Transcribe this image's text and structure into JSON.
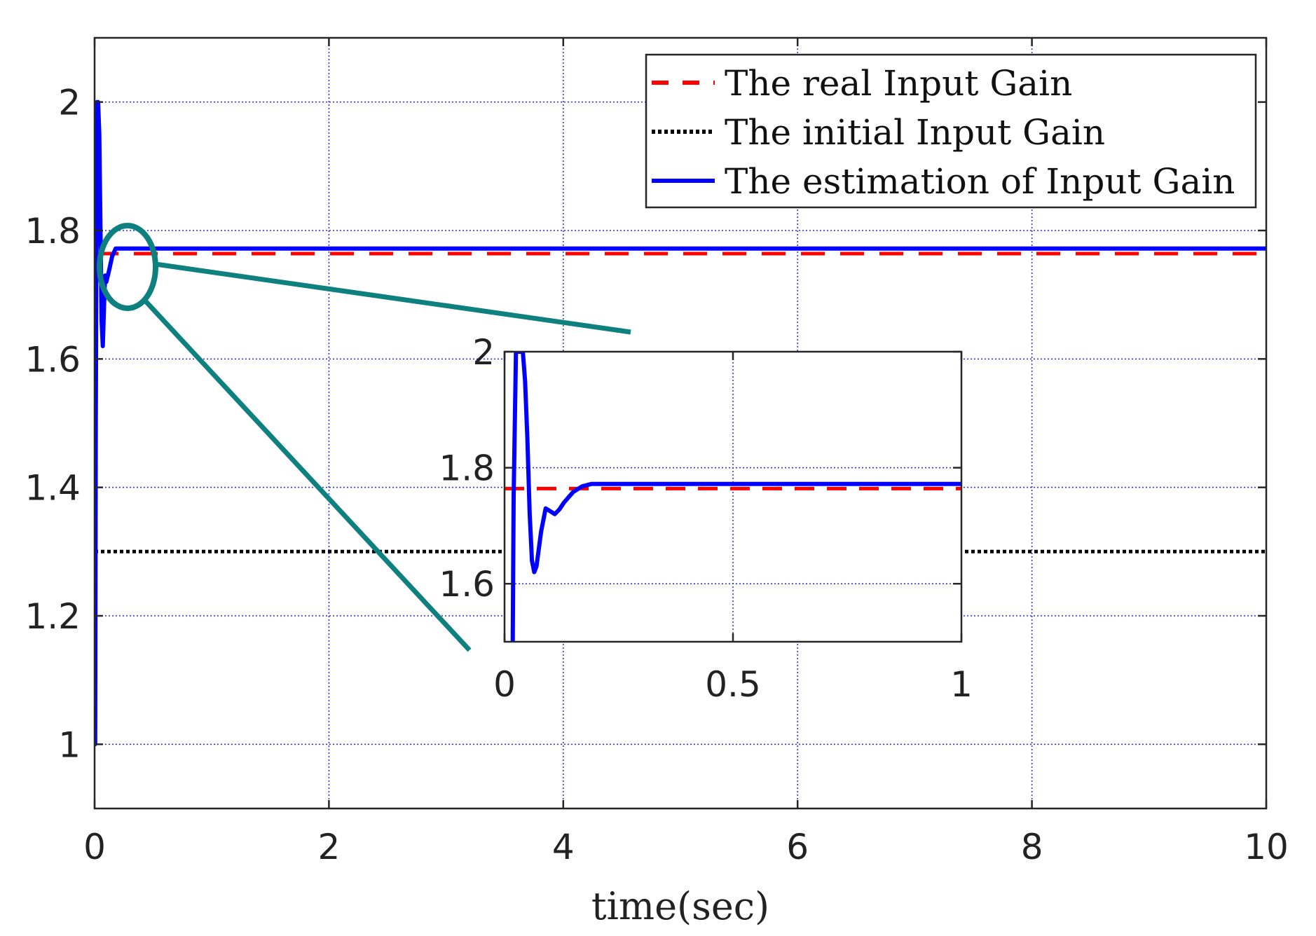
{
  "chart_data": [
    {
      "type": "line",
      "title": "",
      "xlabel": "time(sec)",
      "ylabel": "",
      "xlim": [
        0,
        10
      ],
      "ylim": [
        0.9,
        2.1
      ],
      "xticks": [
        "0",
        "2",
        "4",
        "6",
        "8",
        "10"
      ],
      "yticks": [
        "1",
        "1.2",
        "1.4",
        "1.6",
        "1.8",
        "2"
      ],
      "grid": true,
      "legend_position": "top-right",
      "series": [
        {
          "name": "The real Input Gain",
          "style": "dashed",
          "color": "#ff0000",
          "x": [
            0,
            10
          ],
          "y": [
            1.764,
            1.764
          ]
        },
        {
          "name": "The initial Input Gain",
          "style": "dotted",
          "color": "#000000",
          "x": [
            0,
            10
          ],
          "y": [
            1.3,
            1.3
          ]
        },
        {
          "name": "The estimation of Input Gain",
          "style": "solid",
          "color": "#0000ff",
          "x": [
            0,
            0.005,
            0.01,
            0.02,
            0.03,
            0.04,
            0.05,
            0.06,
            0.07,
            0.08,
            0.09,
            0.1,
            0.12,
            0.15,
            0.18,
            0.2,
            1,
            5,
            10
          ],
          "y": [
            1.1,
            1.0,
            1.5,
            2.0,
            2.0,
            1.95,
            1.8,
            1.66,
            1.62,
            1.68,
            1.73,
            1.72,
            1.735,
            1.76,
            1.772,
            1.772,
            1.772,
            1.772,
            1.772
          ]
        }
      ]
    },
    {
      "type": "line",
      "title": "",
      "xlabel": "",
      "ylabel": "",
      "xlim": [
        0,
        1
      ],
      "ylim": [
        1.5,
        2.0
      ],
      "xticks": [
        "0",
        "0.5",
        "1"
      ],
      "yticks": [
        "1.6",
        "1.8",
        "2"
      ],
      "grid": true,
      "series": [
        {
          "style": "dashed",
          "color": "#ff0000",
          "x": [
            0,
            1
          ],
          "y": [
            1.764,
            1.764
          ]
        },
        {
          "style": "solid",
          "color": "#0000ff",
          "x": [
            0.018,
            0.02,
            0.025,
            0.03,
            0.04,
            0.045,
            0.05,
            0.055,
            0.06,
            0.065,
            0.07,
            0.08,
            0.09,
            0.1,
            0.11,
            0.12,
            0.13,
            0.15,
            0.17,
            0.19,
            0.22,
            0.3,
            0.5,
            1.0
          ],
          "y": [
            1.5,
            1.75,
            2.0,
            2.0,
            2.0,
            1.95,
            1.85,
            1.72,
            1.64,
            1.62,
            1.63,
            1.69,
            1.73,
            1.725,
            1.72,
            1.728,
            1.74,
            1.758,
            1.768,
            1.772,
            1.772,
            1.772,
            1.772,
            1.772
          ]
        }
      ]
    }
  ]
}
